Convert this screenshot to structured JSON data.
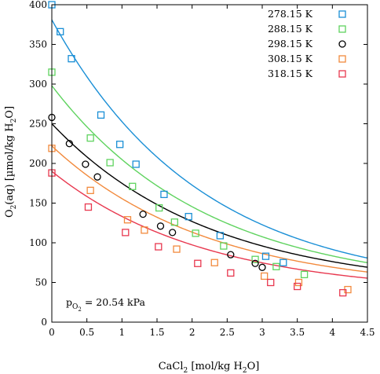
{
  "chart_data": {
    "type": "scatter",
    "xlabel": "CaCl",
    "xlabel_sub": "2",
    "xlabel_rest": " [mol/kg H",
    "xlabel_sub2": "2",
    "xlabel_end": "O]",
    "ylabel": "O",
    "ylabel_sub": "2",
    "ylabel_rest": "(aq) [µmol/kg H",
    "ylabel_sub2": "2",
    "ylabel_end": "O]",
    "xlim": [
      0,
      4.5
    ],
    "ylim": [
      0,
      400
    ],
    "xticks": [
      "0",
      "0.5",
      "1",
      "1.5",
      "2",
      "2.5",
      "3",
      "3.5",
      "4",
      "4.5"
    ],
    "xtick_values": [
      0,
      0.5,
      1,
      1.5,
      2,
      2.5,
      3,
      3.5,
      4,
      4.5
    ],
    "yticks": [
      "0",
      "50",
      "100",
      "150",
      "200",
      "250",
      "300",
      "350",
      "400"
    ],
    "ytick_values": [
      0,
      50,
      100,
      150,
      200,
      250,
      300,
      350,
      400
    ],
    "legend_position": "top-right",
    "annotation": {
      "prefix": "p",
      "sub": "O",
      "subsub": "2",
      "text": " = 20.54 kPa"
    },
    "series": [
      {
        "name": "278.15 K",
        "color": "#1a8fd6",
        "marker": "square",
        "points": [
          [
            0,
            400
          ],
          [
            0.12,
            366
          ],
          [
            0.28,
            332
          ],
          [
            0.7,
            261
          ],
          [
            0.97,
            224
          ],
          [
            1.2,
            199
          ],
          [
            1.6,
            161
          ],
          [
            1.95,
            133
          ],
          [
            2.4,
            109
          ],
          [
            3.05,
            83
          ],
          [
            3.3,
            75
          ]
        ],
        "curve": [
          381,
          0.472,
          40
        ]
      },
      {
        "name": "288.15 K",
        "color": "#5fd35f",
        "marker": "square",
        "points": [
          [
            0,
            315
          ],
          [
            0.55,
            232
          ],
          [
            0.83,
            201
          ],
          [
            1.15,
            171
          ],
          [
            1.53,
            144
          ],
          [
            1.75,
            126
          ],
          [
            2.05,
            112
          ],
          [
            2.45,
            96
          ],
          [
            2.9,
            79
          ],
          [
            3.2,
            70
          ],
          [
            3.6,
            60
          ]
        ],
        "curve": [
          298,
          0.45,
          41
        ]
      },
      {
        "name": "298.15 K",
        "color": "#000000",
        "marker": "circle",
        "points": [
          [
            0,
            258
          ],
          [
            0.25,
            225
          ],
          [
            0.48,
            199
          ],
          [
            0.65,
            183
          ],
          [
            1.3,
            136
          ],
          [
            1.55,
            121
          ],
          [
            1.72,
            113
          ],
          [
            2.55,
            85
          ],
          [
            2.9,
            74
          ],
          [
            3.0,
            69
          ]
        ],
        "curve": [
          250,
          0.445,
          41
        ]
      },
      {
        "name": "308.15 K",
        "color": "#f28a3d",
        "marker": "square",
        "points": [
          [
            0,
            219
          ],
          [
            0.55,
            166
          ],
          [
            1.08,
            129
          ],
          [
            1.32,
            116
          ],
          [
            1.78,
            92
          ],
          [
            2.32,
            75
          ],
          [
            3.03,
            58
          ],
          [
            3.52,
            50
          ],
          [
            4.22,
            41
          ]
        ],
        "curve": [
          222,
          0.45,
          39
        ]
      },
      {
        "name": "318.15 K",
        "color": "#e8384f",
        "marker": "square",
        "points": [
          [
            0,
            188
          ],
          [
            0.52,
            145
          ],
          [
            1.05,
            113
          ],
          [
            1.52,
            95
          ],
          [
            2.08,
            74
          ],
          [
            2.55,
            62
          ],
          [
            3.12,
            50
          ],
          [
            3.5,
            45
          ],
          [
            4.15,
            37
          ]
        ],
        "curve": [
          190,
          0.46,
          36
        ]
      }
    ]
  }
}
